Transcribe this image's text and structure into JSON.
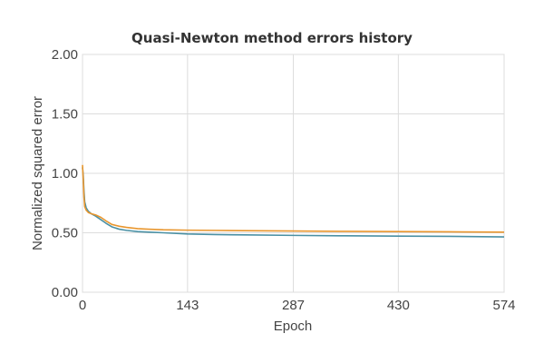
{
  "chart_data": {
    "type": "line",
    "title": "Quasi-Newton method errors history",
    "xlabel": "Epoch",
    "ylabel": "Normalized squared error",
    "xlim": [
      0,
      574
    ],
    "ylim": [
      0,
      2
    ],
    "x_ticks": [
      "0",
      "143",
      "287",
      "430",
      "574"
    ],
    "y_ticks": [
      "0.00",
      "0.50",
      "1.00",
      "1.50",
      "2.00"
    ],
    "grid": true,
    "legend": "none",
    "series": [
      {
        "color": "#4a90a4",
        "x": [
          0,
          1,
          2,
          3,
          5,
          8,
          12,
          18,
          25,
          32,
          40,
          50,
          60,
          75,
          90,
          110,
          143,
          180,
          220,
          287,
          350,
          430,
          500,
          574
        ],
        "y": [
          1.05,
          0.98,
          0.85,
          0.76,
          0.71,
          0.68,
          0.66,
          0.64,
          0.61,
          0.58,
          0.55,
          0.53,
          0.52,
          0.51,
          0.505,
          0.5,
          0.49,
          0.485,
          0.482,
          0.478,
          0.475,
          0.472,
          0.47,
          0.465
        ]
      },
      {
        "color": "#e8962e",
        "x": [
          0,
          1,
          2,
          3,
          5,
          8,
          12,
          18,
          25,
          32,
          40,
          50,
          60,
          75,
          90,
          110,
          143,
          180,
          220,
          287,
          350,
          430,
          500,
          574
        ],
        "y": [
          1.07,
          0.95,
          0.8,
          0.72,
          0.69,
          0.67,
          0.66,
          0.65,
          0.63,
          0.6,
          0.57,
          0.555,
          0.545,
          0.535,
          0.53,
          0.525,
          0.522,
          0.52,
          0.518,
          0.515,
          0.512,
          0.51,
          0.508,
          0.505
        ]
      }
    ]
  }
}
